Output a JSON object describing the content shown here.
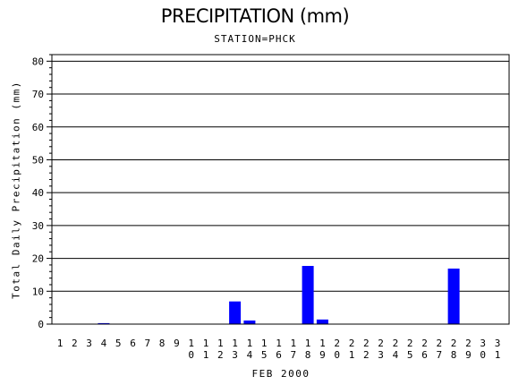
{
  "chart_data": {
    "type": "bar",
    "title": "PRECIPITATION (mm)",
    "subtitle": "STATION=PHCK",
    "xlabel": "FEB 2000",
    "ylabel": "Total Daily Precipitation (mm)",
    "ylim": [
      0,
      82
    ],
    "yticks": [
      0,
      10,
      20,
      30,
      40,
      50,
      60,
      70,
      80
    ],
    "grid": true,
    "bar_color": "#0000ff",
    "categories": [
      "1",
      "2",
      "3",
      "4",
      "5",
      "6",
      "7",
      "8",
      "9",
      "10",
      "11",
      "12",
      "13",
      "14",
      "15",
      "16",
      "17",
      "18",
      "19",
      "20",
      "21",
      "22",
      "23",
      "24",
      "25",
      "26",
      "27",
      "28",
      "29",
      "30",
      "31"
    ],
    "values": [
      0,
      0,
      0,
      0.3,
      0,
      0,
      0,
      0,
      0,
      0,
      0,
      0,
      6.9,
      1.1,
      0,
      0,
      0,
      17.7,
      1.4,
      0,
      0,
      0,
      0,
      0,
      0,
      0,
      0,
      16.9,
      0,
      null,
      null
    ]
  }
}
